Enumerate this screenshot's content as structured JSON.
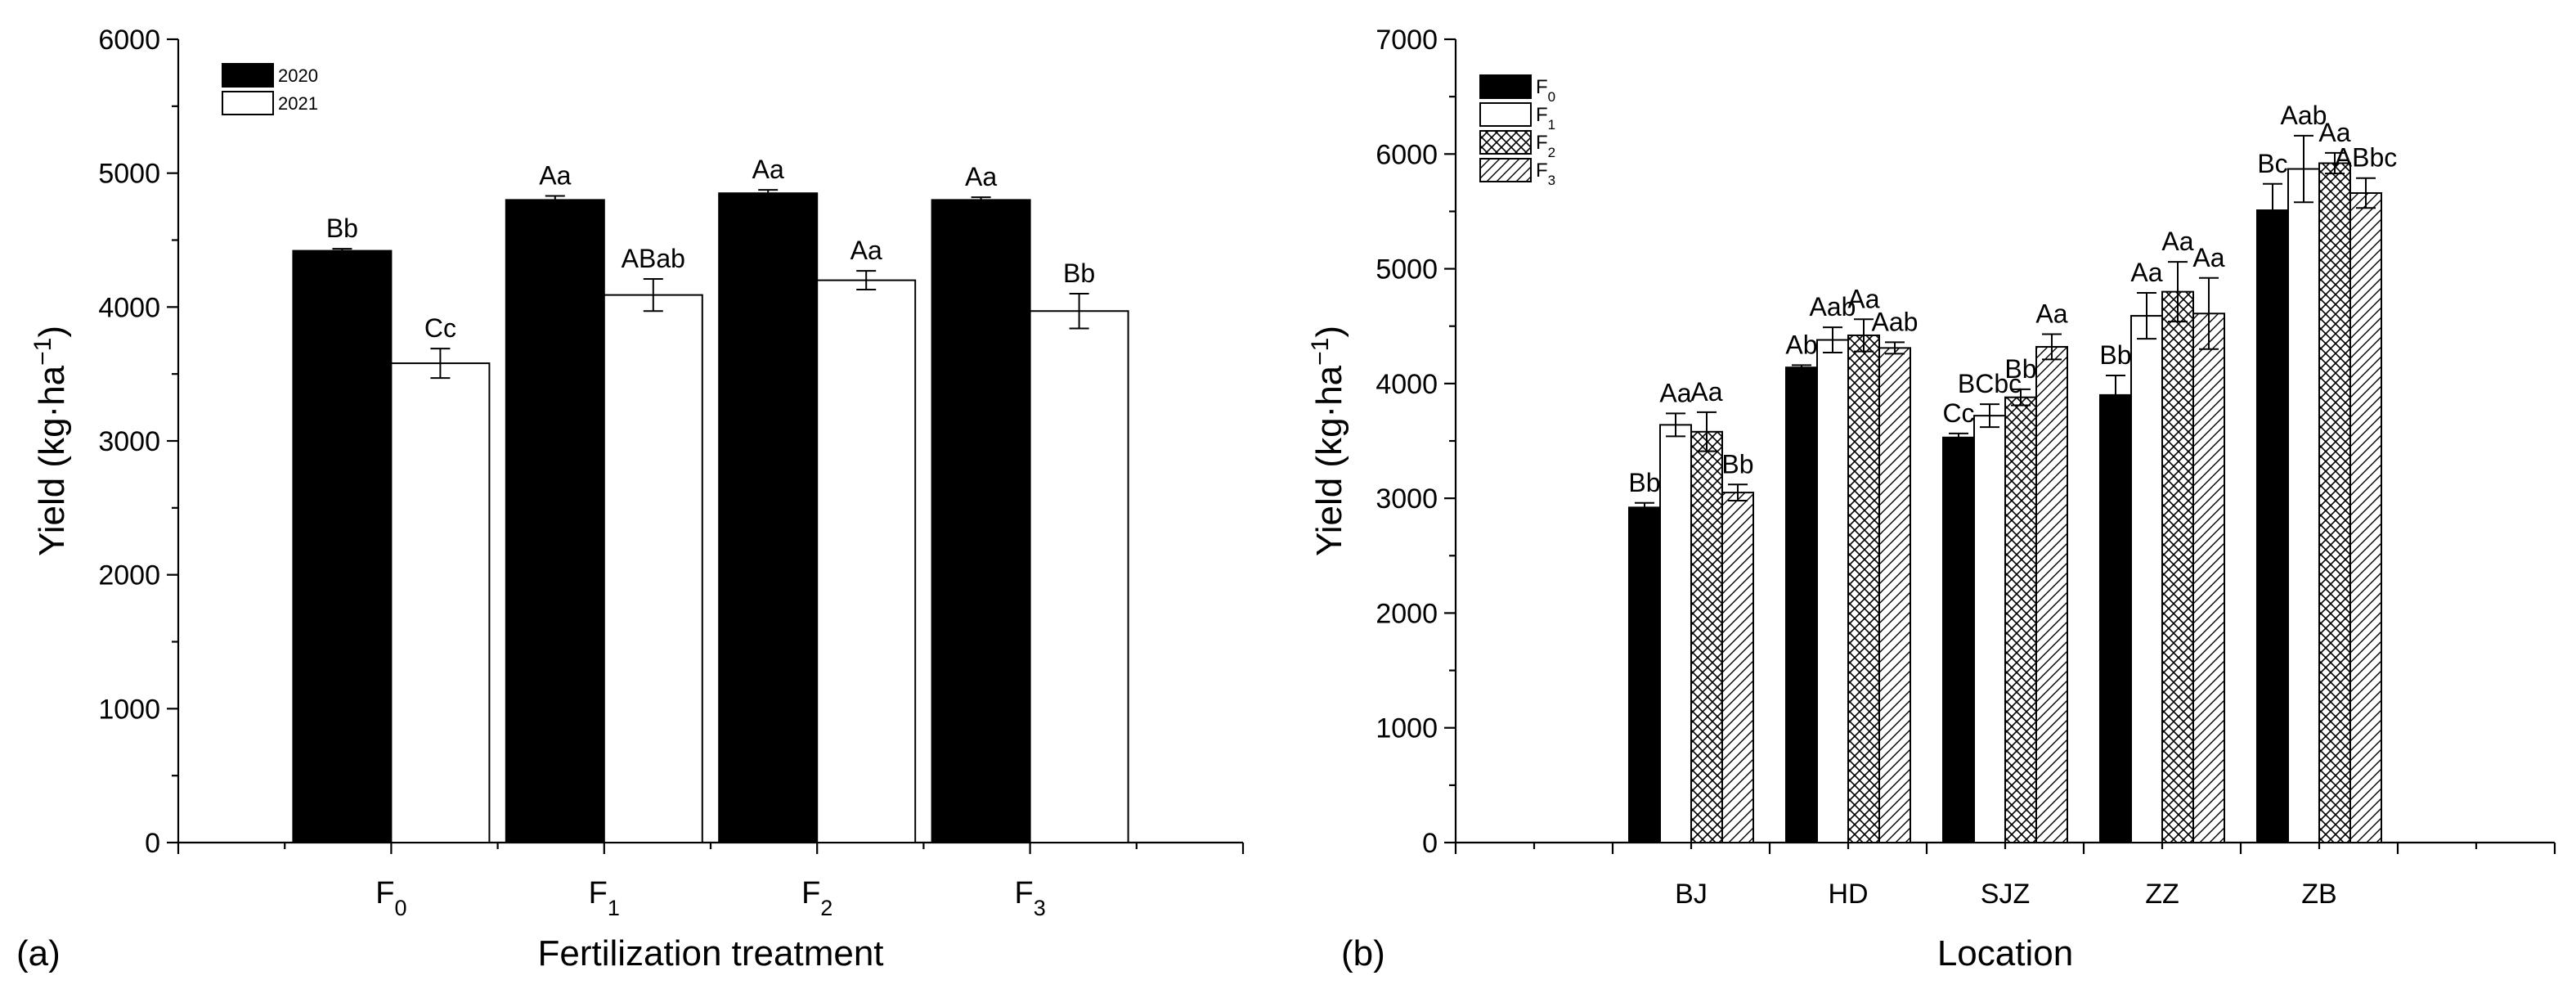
{
  "chart_data": [
    {
      "panel": "(a)",
      "type": "bar",
      "title": "",
      "xlabel": "Fertilization treatment",
      "ylabel": "Yield (kg·ha−1)",
      "ylabel_parts": {
        "main": "Yield (kg·ha",
        "sup": "−1",
        "close": ")"
      },
      "ylim": [
        0,
        6000
      ],
      "yticks": [
        0,
        1000,
        2000,
        3000,
        4000,
        5000,
        6000
      ],
      "categories": [
        {
          "base": "F",
          "sub": "0"
        },
        {
          "base": "F",
          "sub": "1"
        },
        {
          "base": "F",
          "sub": "2"
        },
        {
          "base": "F",
          "sub": "3"
        }
      ],
      "legend_position": "top-left",
      "series": [
        {
          "name": "2020",
          "fill": "solid-black",
          "values": [
            4420,
            4800,
            4850,
            4800
          ],
          "errors": [
            15,
            30,
            25,
            20
          ],
          "labels": [
            "Bb",
            "Aa",
            "Aa",
            "Aa"
          ]
        },
        {
          "name": "2021",
          "fill": "white",
          "values": [
            3580,
            4090,
            4200,
            3970
          ],
          "errors": [
            110,
            120,
            70,
            130
          ],
          "labels": [
            "Cc",
            "ABab",
            "Aa",
            "Bb"
          ]
        }
      ]
    },
    {
      "panel": "(b)",
      "type": "bar",
      "title": "",
      "xlabel": "Location",
      "ylabel": "Yield (kg·ha−1)",
      "ylabel_parts": {
        "main": "Yield (kg·ha",
        "sup": "−1",
        "close": ")"
      },
      "ylim": [
        0,
        7000
      ],
      "yticks": [
        0,
        1000,
        2000,
        3000,
        4000,
        5000,
        6000,
        7000
      ],
      "categories": [
        "BJ",
        "HD",
        "SJZ",
        "ZZ",
        "ZB"
      ],
      "legend_position": "top-left",
      "series": [
        {
          "name": "F0",
          "name_base": "F",
          "name_sub": "0",
          "fill": "solid-black",
          "values": [
            2920,
            4140,
            3530,
            3900,
            5510
          ],
          "errors": [
            40,
            20,
            35,
            170,
            230
          ],
          "labels": [
            "Bb",
            "Ab",
            "Cc",
            "Bb",
            "Bc"
          ]
        },
        {
          "name": "F1",
          "name_base": "F",
          "name_sub": "1",
          "fill": "white",
          "values": [
            3640,
            4380,
            3720,
            4590,
            5870
          ],
          "errors": [
            100,
            110,
            100,
            200,
            290
          ],
          "labels": [
            "Aa",
            "Aab",
            "BCbc",
            "Aa",
            "Aab"
          ]
        },
        {
          "name": "F2",
          "name_base": "F",
          "name_sub": "2",
          "fill": "crosshatch",
          "values": [
            3580,
            4420,
            3880,
            4800,
            5920
          ],
          "errors": [
            170,
            140,
            70,
            260,
            90
          ],
          "labels": [
            "Aa",
            "Aa",
            "Bb",
            "Aa",
            "Aa"
          ]
        },
        {
          "name": "F3",
          "name_base": "F",
          "name_sub": "3",
          "fill": "diagonal-hatch",
          "values": [
            3050,
            4310,
            4320,
            4610,
            5660
          ],
          "errors": [
            70,
            50,
            110,
            310,
            130
          ],
          "labels": [
            "Bb",
            "Aab",
            "Aa",
            "Aa",
            "ABbc"
          ]
        }
      ]
    }
  ]
}
